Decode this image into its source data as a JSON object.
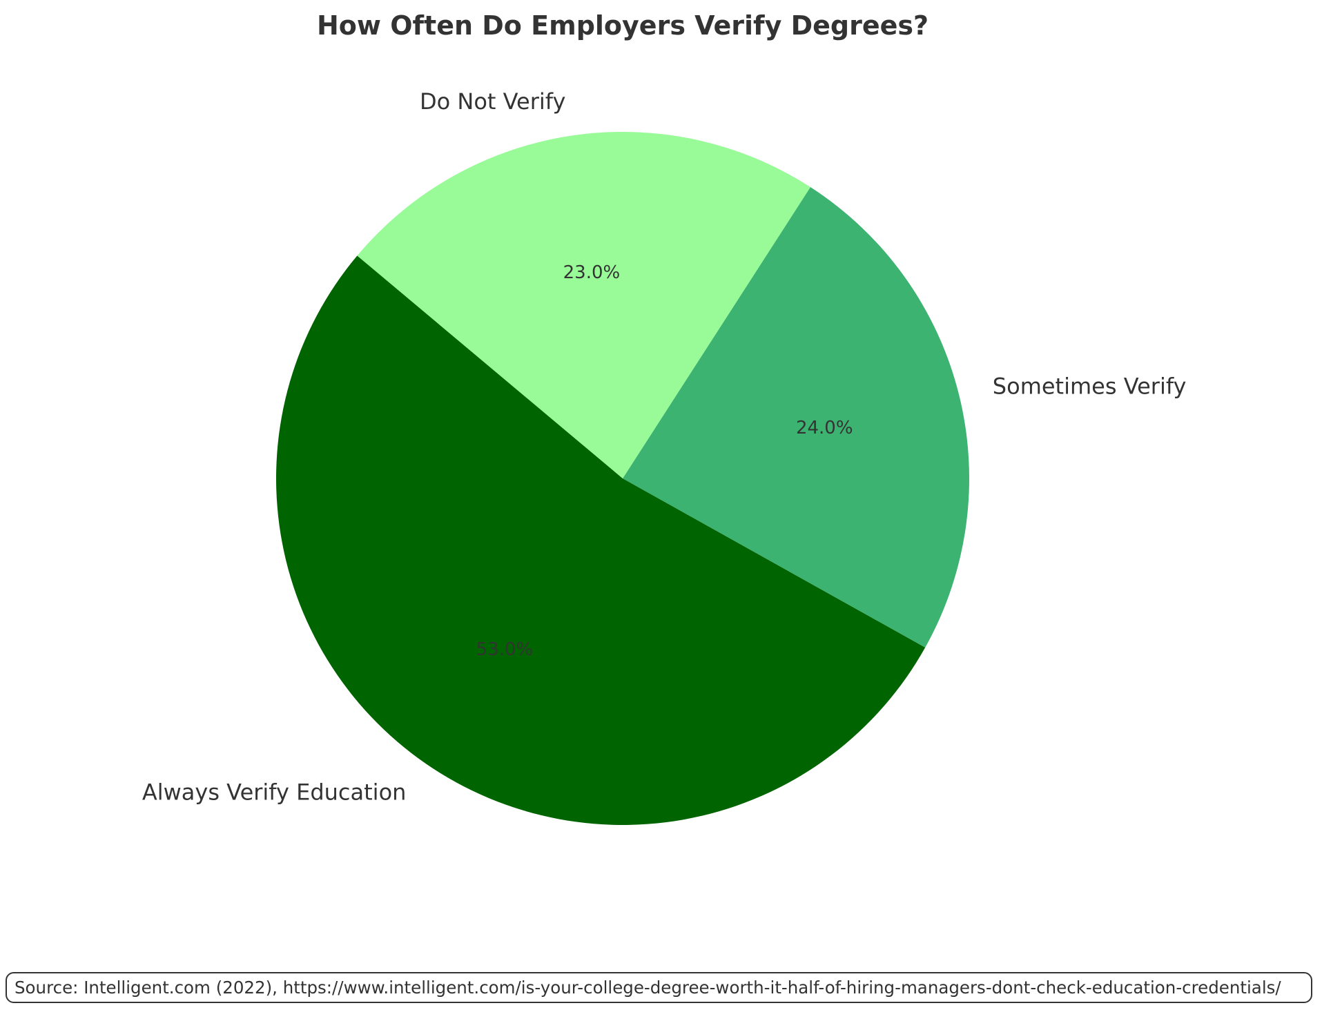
{
  "chart_data": {
    "type": "pie",
    "title": "How Often Do Employers Verify Degrees?",
    "start_angle_deg": 140,
    "direction": "counterclockwise",
    "slices": [
      {
        "label": "Always Verify Education",
        "value": 53.0,
        "pct_label": "53.0%",
        "color": "#006400"
      },
      {
        "label": "Sometimes Verify",
        "value": 24.0,
        "pct_label": "24.0%",
        "color": "#3CB371"
      },
      {
        "label": "Do Not Verify",
        "value": 23.0,
        "pct_label": "23.0%",
        "color": "#98FB98"
      }
    ]
  },
  "source_note": "Source: Intelligent.com (2022), https://www.intelligent.com/is-your-college-degree-worth-it-half-of-hiring-managers-dont-check-education-credentials/"
}
